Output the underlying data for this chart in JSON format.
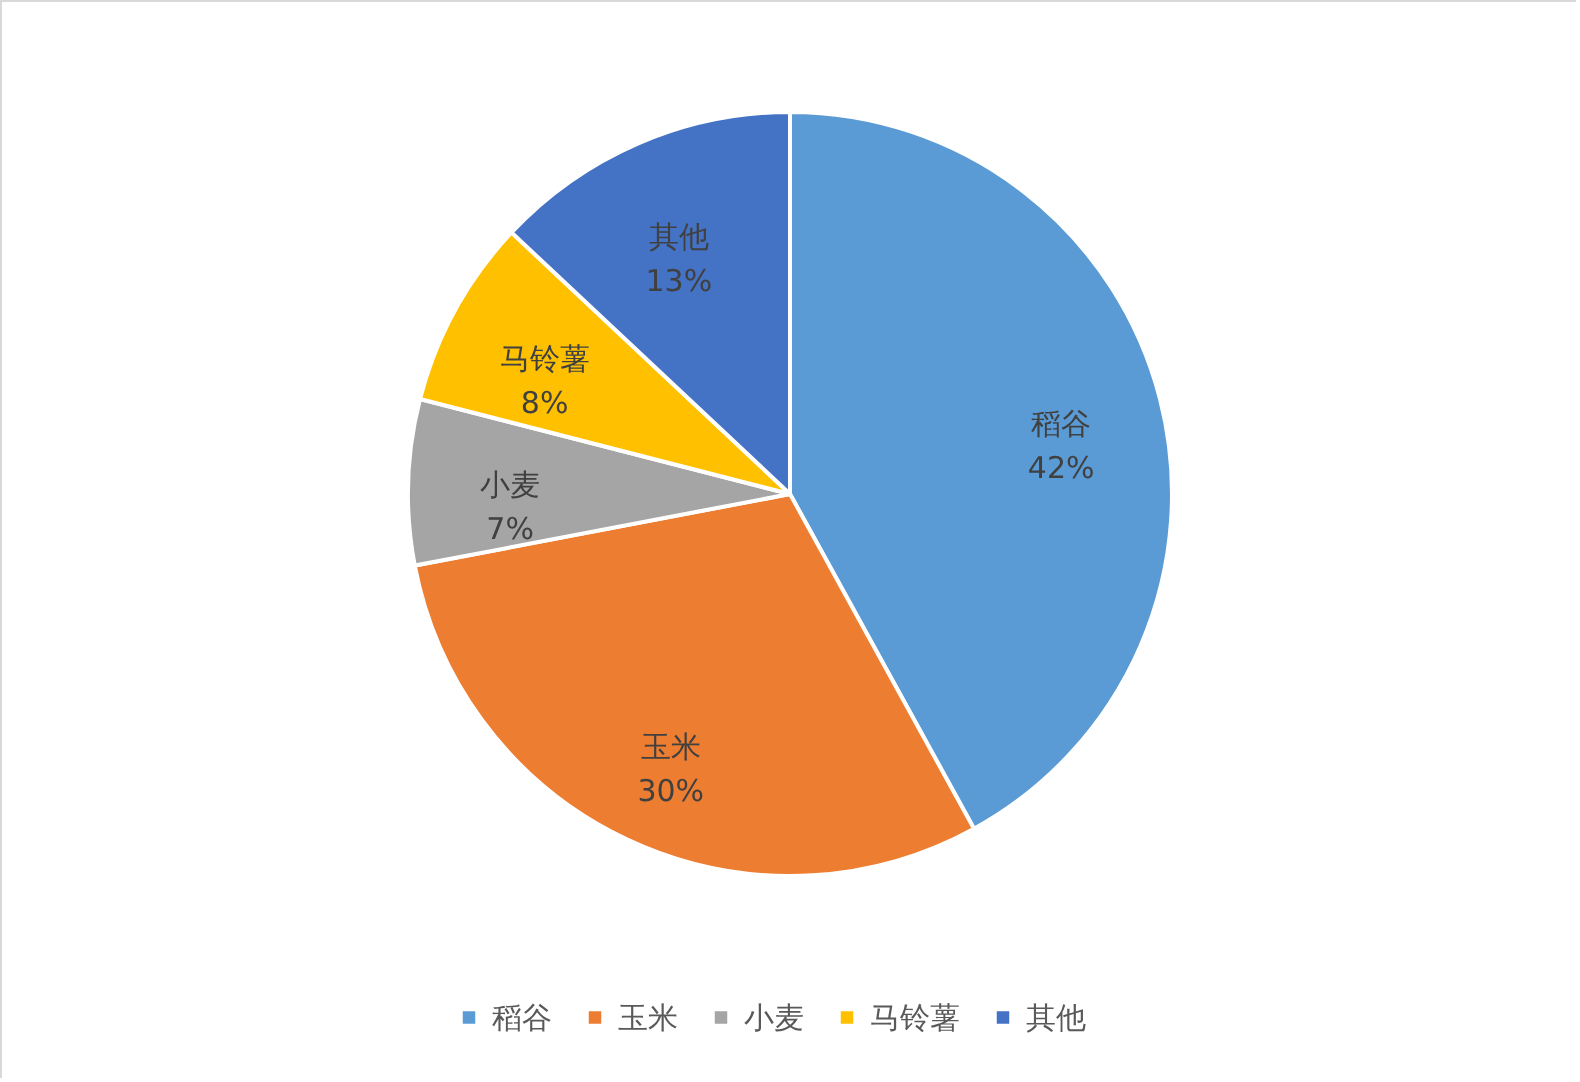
{
  "chart_data": {
    "type": "pie",
    "categories": [
      "稻谷",
      "玉米",
      "小麦",
      "马铃薯",
      "其他"
    ],
    "values": [
      42,
      30,
      7,
      8,
      13
    ],
    "colors": [
      "#5b9bd5",
      "#ed7d31",
      "#a5a5a5",
      "#ffc000",
      "#4472c4"
    ],
    "value_labels": [
      "42%",
      "30%",
      "7%",
      "8%",
      "13%"
    ],
    "legend": "bottom"
  }
}
